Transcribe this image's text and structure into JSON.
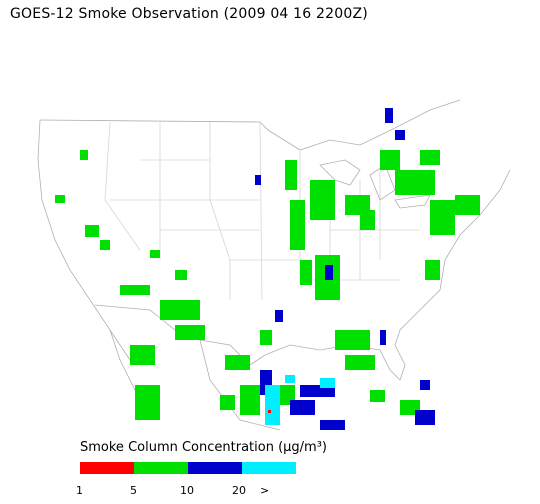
{
  "title": "GOES-12 Smoke Observation (2009 04 16  2200Z)",
  "legend": {
    "title": "Smoke Column Concentration (μg/m³)",
    "colors": [
      "#ff0000",
      "#00e000",
      "#0000cc",
      "#00eeff"
    ],
    "ticks": [
      "1",
      "5",
      "10",
      "20",
      ">"
    ]
  }
}
